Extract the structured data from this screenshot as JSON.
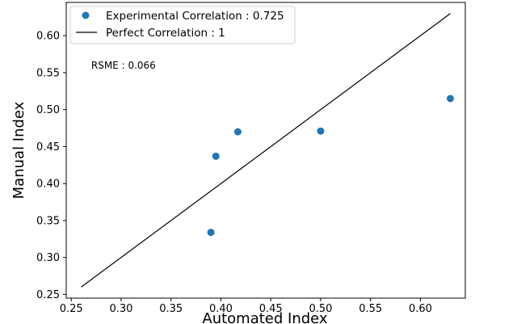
{
  "chart_data": {
    "type": "scatter",
    "xlabel": "Automated Index",
    "ylabel": "Manual Index",
    "xlim": [
      0.245,
      0.645
    ],
    "ylim": [
      0.245,
      0.645
    ],
    "x_ticks": [
      0.25,
      0.3,
      0.35,
      0.4,
      0.45,
      0.5,
      0.55,
      0.6
    ],
    "y_ticks": [
      0.25,
      0.3,
      0.35,
      0.4,
      0.45,
      0.5,
      0.55,
      0.6
    ],
    "x_tick_labels": [
      "0.25",
      "0.30",
      "0.35",
      "0.40",
      "0.45",
      "0.50",
      "0.55",
      "0.60"
    ],
    "y_tick_labels": [
      "0.25",
      "0.30",
      "0.35",
      "0.40",
      "0.45",
      "0.50",
      "0.55",
      "0.60"
    ],
    "grid": false,
    "legend_position": "top-left",
    "series": [
      {
        "name": "Experimental Correlation : 0.725",
        "kind": "scatter",
        "color": "#1f77b4",
        "points": [
          {
            "x": 0.39,
            "y": 0.334
          },
          {
            "x": 0.395,
            "y": 0.437
          },
          {
            "x": 0.417,
            "y": 0.47
          },
          {
            "x": 0.5,
            "y": 0.471
          },
          {
            "x": 0.63,
            "y": 0.515
          }
        ]
      },
      {
        "name": "Perfect Correlation : 1",
        "kind": "line",
        "color": "#000000",
        "points": [
          {
            "x": 0.26,
            "y": 0.26
          },
          {
            "x": 0.63,
            "y": 0.63
          }
        ]
      }
    ],
    "annotations": [
      {
        "text": "RSME : 0.066",
        "x": 0.27,
        "y": 0.56
      }
    ]
  }
}
